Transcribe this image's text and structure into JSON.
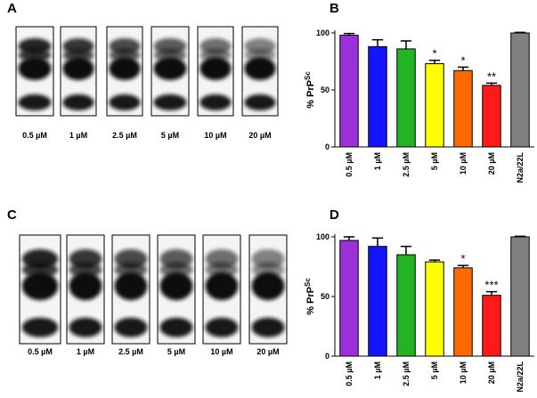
{
  "blots": [
    {
      "label": "A",
      "lanes": [
        "0.5 µM",
        "1 µM",
        "2.5 µM",
        "5 µM",
        "10 µM",
        "20 µM"
      ]
    },
    {
      "label": "C",
      "lanes": [
        "0.5 µM",
        "1 µM",
        "2.5 µM",
        "5 µM",
        "10 µM",
        "20 µM"
      ]
    }
  ],
  "chart_data": [
    {
      "type": "bar",
      "panel_label": "B",
      "ylabel": "% PrP",
      "ylabel_superscript": "Sc",
      "categories": [
        "0.5 µM",
        "1 µM",
        "2.5 µM",
        "5 µM",
        "10 µM",
        "20 µM",
        "N2a/22L"
      ],
      "values": [
        98,
        88,
        86,
        73,
        67,
        54,
        100
      ],
      "errors": [
        1.5,
        6,
        7,
        3,
        3,
        2,
        0.5
      ],
      "significance": [
        null,
        null,
        null,
        "*",
        "*",
        "**",
        null
      ],
      "colors": [
        "#9b30d9",
        "#1414ff",
        "#22b422",
        "#ffff00",
        "#ff6a00",
        "#ff1a1a",
        "#808080"
      ],
      "ylim": [
        0,
        100
      ],
      "yticks": [
        0,
        50,
        100
      ]
    },
    {
      "type": "bar",
      "panel_label": "D",
      "ylabel": "% PrP",
      "ylabel_superscript": "Sc",
      "categories": [
        "0.5 µM",
        "1 µM",
        "2.5 µM",
        "5 µM",
        "10 µM",
        "20 µM",
        "N2a/22L"
      ],
      "values": [
        97,
        92,
        85,
        79,
        74,
        51,
        100
      ],
      "errors": [
        3,
        7,
        7,
        1.5,
        2,
        3,
        0.5
      ],
      "significance": [
        null,
        null,
        null,
        null,
        "*",
        "***",
        null
      ],
      "colors": [
        "#9b30d9",
        "#1414ff",
        "#22b422",
        "#ffff00",
        "#ff6a00",
        "#ff1a1a",
        "#808080"
      ],
      "ylim": [
        0,
        100
      ],
      "yticks": [
        0,
        50,
        100
      ]
    }
  ]
}
